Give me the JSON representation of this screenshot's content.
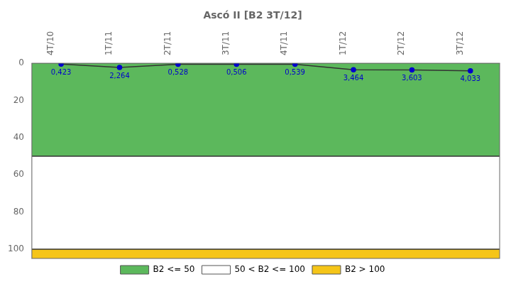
{
  "chart_data": {
    "type": "line",
    "title": "Ascó II [B2 3T/12]",
    "categories": [
      "4T/10",
      "1T/11",
      "2T/11",
      "3T/11",
      "4T/11",
      "1T/12",
      "2T/12",
      "3T/12"
    ],
    "values": [
      0.423,
      2.264,
      0.528,
      0.506,
      0.539,
      3.464,
      3.603,
      4.033
    ],
    "value_labels": [
      "0,423",
      "2,264",
      "0,528",
      "0,506",
      "0,539",
      "3,464",
      "3,603",
      "4,033"
    ],
    "data_labels": true,
    "color": "#0000cc",
    "marker": "circle",
    "ylim": [
      0,
      105
    ],
    "yticks": [
      0,
      20,
      40,
      60,
      80,
      100
    ],
    "grid": false,
    "legend": "bottom",
    "bands": [
      {
        "name": "B2 <= 50",
        "from": 0,
        "to": 50,
        "color": "#5cb85c"
      },
      {
        "name": "50 < B2 <= 100",
        "from": 50,
        "to": 100,
        "color": "#ffffff"
      },
      {
        "name": "B2 > 100",
        "from": 100,
        "to": 105,
        "color": "#f5c518"
      }
    ]
  }
}
